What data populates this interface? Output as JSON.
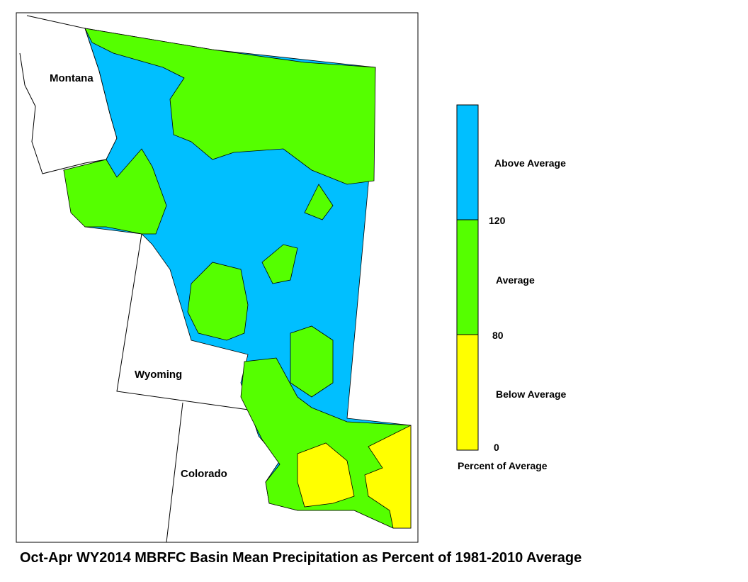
{
  "map": {
    "states": [
      "Montana",
      "Wyoming",
      "Colorado"
    ]
  },
  "legend": {
    "title": "Percent of Average",
    "classes": [
      {
        "label": "Above Average",
        "color": "#00bfff"
      },
      {
        "label": "Average",
        "color": "#55ff00"
      },
      {
        "label": "Below Average",
        "color": "#ffff00"
      }
    ],
    "breaks": [
      120,
      80,
      0
    ]
  },
  "caption": "Oct-Apr WY2014 MBRFC Basin Mean Precipitation as Percent of 1981-2010 Average"
}
